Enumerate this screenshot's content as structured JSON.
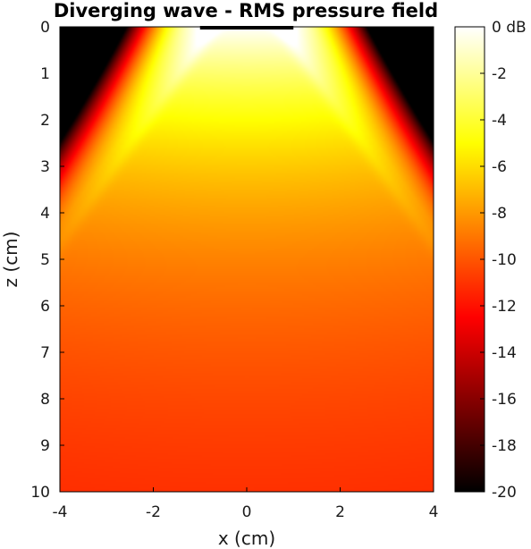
{
  "chart_data": {
    "type": "heatmap",
    "title": "Diverging wave - RMS pressure field",
    "xlabel": "x (cm)",
    "ylabel": "z (cm)",
    "xlim": [
      -4,
      4
    ],
    "ylim": [
      0,
      10
    ],
    "y_reversed": true,
    "xticks": [
      -4,
      -2,
      0,
      2,
      4
    ],
    "yticks": [
      0,
      1,
      2,
      3,
      4,
      5,
      6,
      7,
      8,
      9,
      10
    ],
    "colorbar": {
      "unit": "dB",
      "range": [
        -20,
        0
      ],
      "ticks": [
        0,
        -2,
        -4,
        -6,
        -8,
        -10,
        -12,
        -14,
        -16,
        -18,
        -20
      ],
      "tick_labels": [
        "0 dB",
        "-2",
        "-4",
        "-6",
        "-8",
        "-10",
        "-12",
        "-14",
        "-16",
        "-18",
        "-20"
      ],
      "colormap": "hot"
    },
    "source": {
      "x_start": -1,
      "x_end": 1,
      "z": 0
    },
    "field_description_values": {
      "peak_db": 0,
      "floor_db": -20,
      "far_field_db": -10
    }
  }
}
